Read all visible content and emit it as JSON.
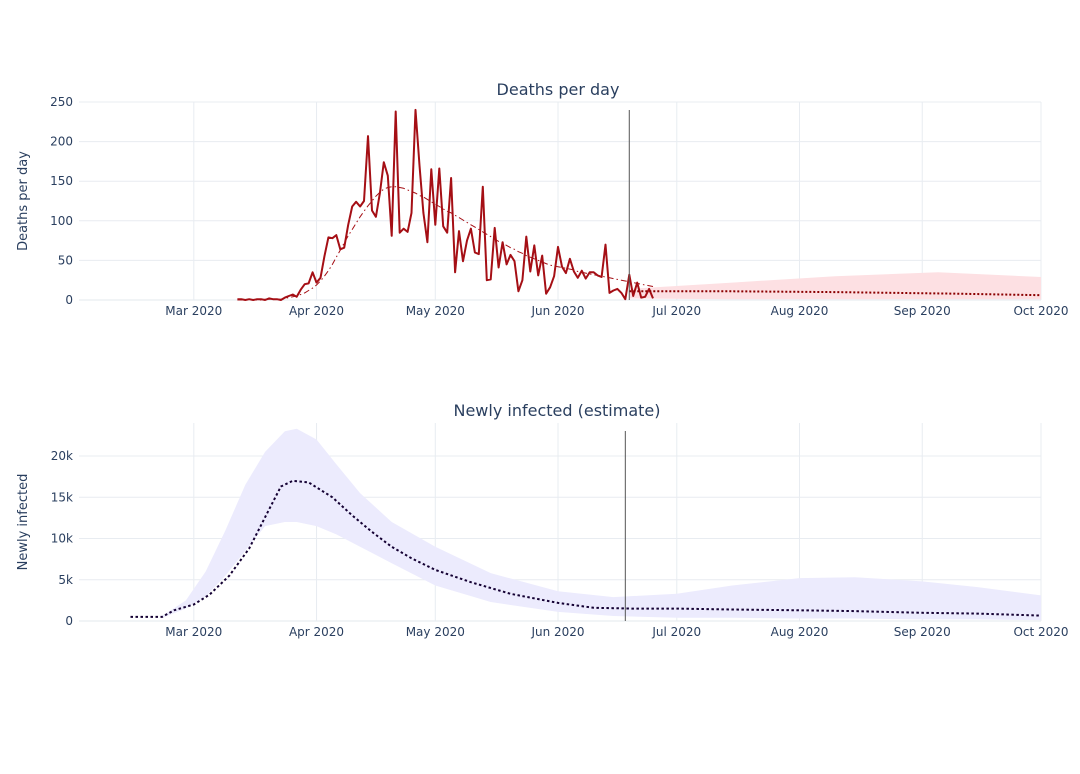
{
  "chart_data": [
    {
      "type": "line",
      "title": "Deaths per day",
      "xlabel": "",
      "ylabel": "Deaths per day",
      "xlim": [
        "2020-02-01",
        "2020-10-01"
      ],
      "ylim": [
        0,
        250
      ],
      "x_ticks": [
        "Mar 2020",
        "Apr 2020",
        "May 2020",
        "Jun 2020",
        "Jul 2020",
        "Aug 2020",
        "Sep 2020",
        "Oct 2020"
      ],
      "x_tick_dates": [
        "2020-03-01",
        "2020-04-01",
        "2020-05-01",
        "2020-06-01",
        "2020-07-01",
        "2020-08-01",
        "2020-09-01",
        "2020-10-01"
      ],
      "y_ticks": [
        0,
        50,
        100,
        150,
        200,
        250
      ],
      "y_tick_labels": [
        "0",
        "50",
        "100",
        "150",
        "200",
        "250"
      ],
      "vline_date": "2020-06-19",
      "grid": true,
      "colors": {
        "observed": "#a50f15",
        "smoothed": "#a50f15",
        "forecast": "#8b0000",
        "band": "#fde0e3"
      },
      "series": [
        {
          "style": "solid",
          "start_date": "2020-03-12",
          "values": [
            1,
            1,
            0,
            1,
            0,
            1,
            1,
            0,
            2,
            1,
            1,
            0,
            3,
            5,
            7,
            4,
            13,
            20,
            21,
            35,
            22,
            28,
            55,
            79,
            78,
            82,
            64,
            66,
            95,
            118,
            124,
            118,
            125,
            207,
            113,
            105,
            135,
            174,
            157,
            81,
            238,
            85,
            90,
            86,
            110,
            240,
            170,
            110,
            73,
            165,
            95,
            166,
            93,
            85,
            154,
            35,
            87,
            49,
            75,
            90,
            60,
            58,
            143,
            25,
            26,
            91,
            41,
            73,
            45,
            57,
            49,
            11,
            25,
            80,
            36,
            69,
            31,
            56,
            8,
            16,
            30,
            67,
            42,
            34,
            52,
            36,
            28,
            37,
            27,
            35,
            35,
            31,
            29,
            70,
            9,
            12,
            14,
            9,
            1,
            32,
            5,
            22,
            3,
            4,
            14,
            2
          ]
        },
        {
          "style": "dashdot",
          "start_date": "2020-03-12",
          "values": [
            0,
            0,
            0,
            0,
            0,
            0,
            0,
            1,
            1,
            1,
            1,
            1,
            2,
            3,
            4,
            5,
            7,
            9,
            12,
            15,
            19,
            24,
            30,
            37,
            45,
            54,
            63,
            72,
            81,
            89,
            97,
            105,
            112,
            119,
            125,
            131,
            136,
            140,
            142,
            143,
            143,
            142,
            141,
            139,
            137,
            135,
            132,
            130,
            127,
            124,
            121,
            118,
            115,
            112,
            110,
            107,
            104,
            101,
            98,
            95,
            92,
            89,
            86,
            83,
            80,
            77,
            74,
            72,
            69,
            66,
            64,
            61,
            59,
            56,
            54,
            52,
            50,
            48,
            46,
            44,
            43,
            42,
            41,
            40,
            39,
            38,
            36,
            35,
            34,
            33,
            32,
            31,
            30,
            29,
            28,
            27,
            26,
            25,
            24,
            23,
            22,
            21,
            20,
            19,
            18,
            17
          ]
        },
        {
          "style": "dotted",
          "x": [
            "2020-06-19",
            "2020-07-15",
            "2020-08-10",
            "2020-09-10",
            "2020-10-01"
          ],
          "values": [
            11,
            11,
            10,
            8,
            6
          ]
        }
      ],
      "band": {
        "x": [
          "2020-06-19",
          "2020-07-15",
          "2020-08-10",
          "2020-09-05",
          "2020-10-01"
        ],
        "upper": [
          14,
          22,
          30,
          35,
          29
        ],
        "lower": [
          2,
          1,
          1,
          1,
          1
        ]
      }
    },
    {
      "type": "line",
      "title": "Newly infected (estimate)",
      "xlabel": "",
      "ylabel": "Newly infected",
      "xlim": [
        "2020-02-01",
        "2020-10-01"
      ],
      "ylim": [
        0,
        24000
      ],
      "x_ticks": [
        "Mar 2020",
        "Apr 2020",
        "May 2020",
        "Jun 2020",
        "Jul 2020",
        "Aug 2020",
        "Sep 2020",
        "Oct 2020"
      ],
      "x_tick_dates": [
        "2020-03-01",
        "2020-04-01",
        "2020-05-01",
        "2020-06-01",
        "2020-07-01",
        "2020-08-01",
        "2020-09-01",
        "2020-10-01"
      ],
      "y_ticks": [
        0,
        5000,
        10000,
        15000,
        20000
      ],
      "y_tick_labels": [
        "0",
        "5k",
        "10k",
        "15k",
        "20k"
      ],
      "vline_date": "2020-06-18",
      "grid": true,
      "colors": {
        "estimate": "#140033",
        "band": "#ecebfd"
      },
      "series": [
        {
          "style": "dotted",
          "x": [
            "2020-02-14",
            "2020-02-22",
            "2020-02-25",
            "2020-03-01",
            "2020-03-05",
            "2020-03-10",
            "2020-03-15",
            "2020-03-20",
            "2020-03-23",
            "2020-03-26",
            "2020-03-30",
            "2020-04-05",
            "2020-04-10",
            "2020-04-15",
            "2020-04-20",
            "2020-04-25",
            "2020-05-01",
            "2020-05-10",
            "2020-05-20",
            "2020-06-01",
            "2020-06-10",
            "2020-06-20",
            "2020-07-01",
            "2020-07-15",
            "2020-08-01",
            "2020-08-15",
            "2020-09-01",
            "2020-09-15",
            "2020-10-01"
          ],
          "values": [
            500,
            500,
            1300,
            2000,
            3200,
            5500,
            8800,
            13500,
            16300,
            17000,
            16800,
            15000,
            12800,
            10800,
            9000,
            7600,
            6200,
            4700,
            3300,
            2200,
            1600,
            1500,
            1500,
            1400,
            1300,
            1200,
            1000,
            900,
            650
          ]
        }
      ],
      "band": {
        "x": [
          "2020-02-22",
          "2020-02-28",
          "2020-03-04",
          "2020-03-09",
          "2020-03-14",
          "2020-03-19",
          "2020-03-24",
          "2020-03-27",
          "2020-04-01",
          "2020-04-06",
          "2020-04-12",
          "2020-04-20",
          "2020-05-01",
          "2020-05-15",
          "2020-06-01",
          "2020-06-15",
          "2020-07-01",
          "2020-07-15",
          "2020-08-01",
          "2020-08-15",
          "2020-09-01",
          "2020-09-15",
          "2020-10-01"
        ],
        "upper": [
          600,
          2500,
          6000,
          11000,
          16500,
          20500,
          23000,
          23300,
          22000,
          19000,
          15500,
          12000,
          9000,
          5800,
          3600,
          2900,
          3300,
          4300,
          5200,
          5300,
          4800,
          4100,
          3100
        ],
        "lower": [
          400,
          1500,
          3000,
          5500,
          8500,
          11500,
          12000,
          12000,
          11500,
          10500,
          9000,
          7000,
          4300,
          2300,
          1100,
          600,
          400,
          400,
          300,
          300,
          200,
          200,
          100
        ]
      }
    }
  ]
}
